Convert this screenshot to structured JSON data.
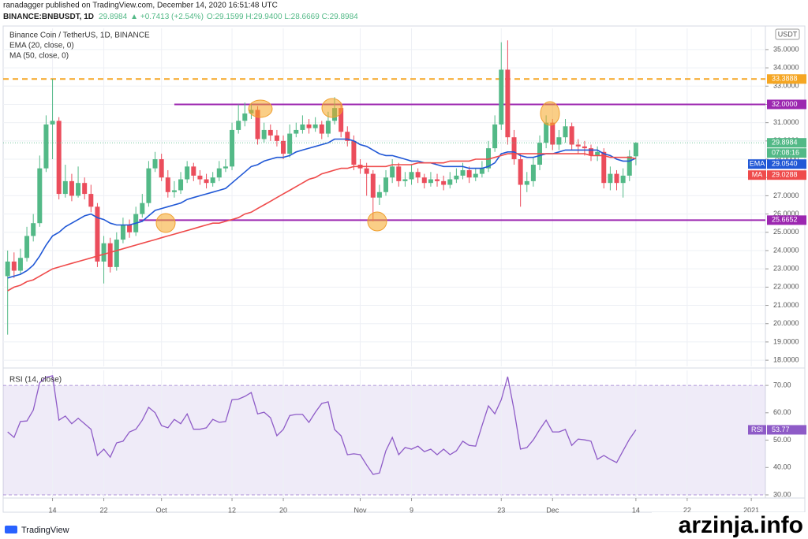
{
  "header": {
    "line1": "ranadagger published on TradingView.com, December 14, 2020 16:51:48 UTC",
    "symbol": "BINANCE:BNBUSDT, 1D",
    "price": "29.8984",
    "change": "▲ +0.7413 (+2.54%)",
    "ohlc": "O:29.1599 H:29.9400 L:28.6669 C:29.8984"
  },
  "footer": {
    "brand": "TradingView",
    "watermark": "arzinja.info"
  },
  "chart_data": [
    {
      "type": "candlestick",
      "title": "Binance Coin / TetherUS, 1D, BINANCE",
      "currency": "USDT",
      "countdown": "07:08:16",
      "up_color": "#53b987",
      "down_color": "#eb4d5c",
      "xlim": [
        -0.7,
        118.2
      ],
      "xticks": [
        {
          "value": 7,
          "label": "14"
        },
        {
          "value": 15,
          "label": "22"
        },
        {
          "value": 24,
          "label": "Oct"
        },
        {
          "value": 35,
          "label": "12"
        },
        {
          "value": 43,
          "label": "20"
        },
        {
          "value": 55,
          "label": "Nov"
        },
        {
          "value": 63,
          "label": "9"
        },
        {
          "value": 77,
          "label": "23"
        },
        {
          "value": 85,
          "label": "Dec"
        },
        {
          "value": 98,
          "label": "14"
        },
        {
          "value": 106,
          "label": "22"
        },
        {
          "value": 116,
          "label": "2021"
        }
      ],
      "ylim": [
        17.66,
        36.16
      ],
      "yticks": [
        {
          "value": 18,
          "label": "18.0000"
        },
        {
          "value": 19,
          "label": "19.0000"
        },
        {
          "value": 20,
          "label": "20.0000"
        },
        {
          "value": 21,
          "label": "21.0000"
        },
        {
          "value": 22,
          "label": "22.0000"
        },
        {
          "value": 23,
          "label": "23.0000"
        },
        {
          "value": 24,
          "label": "24.0000"
        },
        {
          "value": 25,
          "label": "25.0000"
        },
        {
          "value": 26,
          "label": "26.0000"
        },
        {
          "value": 27,
          "label": "27.0000"
        },
        {
          "value": 28,
          "label": "28.0000"
        },
        {
          "value": 29,
          "label": "29.0000"
        },
        {
          "value": 30,
          "label": "30.0000"
        },
        {
          "value": 31,
          "label": "31.0000"
        },
        {
          "value": 32,
          "label": "32.0000"
        },
        {
          "value": 33,
          "label": "33.0000"
        },
        {
          "value": 34,
          "label": "34.0000"
        },
        {
          "value": 35,
          "label": "35.0000"
        }
      ],
      "grid": true,
      "open": [
        22.6,
        23.4,
        22.9,
        23.6,
        24.8,
        25.5,
        28.5,
        30.9,
        31.1,
        27.1,
        27.8,
        27.0,
        27.7,
        27.1,
        26.4,
        23.4,
        24.4,
        23.1,
        24.6,
        25.4,
        25.0,
        26.0,
        26.6,
        28.5,
        29.0,
        28.0,
        27.2,
        27.3,
        27.9,
        28.6,
        28.1,
        27.9,
        27.7,
        28.0,
        28.5,
        28.6,
        30.6,
        31.1,
        31.5,
        31.7,
        30.1,
        30.6,
        30.3,
        30.0,
        29.3,
        30.4,
        30.6,
        30.9,
        30.7,
        30.9,
        30.4,
        31.1,
        31.8,
        30.5,
        30.0,
        28.7,
        28.5,
        28.2,
        26.9,
        27.2,
        28.0,
        28.6,
        27.8,
        27.9,
        28.3,
        28.0,
        27.7,
        27.9,
        27.8,
        27.6,
        27.9,
        28.1,
        28.4,
        28.0,
        28.2,
        28.5,
        29.6,
        30.9,
        33.9,
        30.2,
        29.0,
        27.6,
        27.8,
        28.7,
        29.9,
        31.0,
        29.8,
        30.2,
        30.8,
        29.8,
        29.7,
        29.6,
        29.2,
        29.4,
        27.7,
        28.2,
        27.7,
        28.1,
        29.1599
      ],
      "high": [
        24.0,
        23.9,
        24.1,
        25.3,
        26.0,
        29.2,
        31.4,
        33.4,
        31.3,
        28.7,
        28.2,
        28.6,
        28.0,
        27.6,
        26.6,
        24.8,
        24.7,
        25.0,
        25.8,
        25.7,
        26.4,
        27.1,
        28.9,
        29.4,
        29.3,
        28.4,
        27.8,
        28.3,
        28.9,
        28.8,
        28.4,
        28.2,
        28.3,
        28.9,
        29.0,
        31.0,
        32.0,
        32.1,
        32.0,
        31.9,
        31.0,
        30.9,
        30.6,
        30.3,
        30.9,
        31.0,
        31.4,
        31.2,
        31.3,
        31.1,
        31.6,
        32.4,
        32.1,
        30.8,
        30.3,
        29.0,
        28.8,
        28.4,
        27.6,
        28.4,
        29.0,
        28.8,
        28.3,
        28.7,
        28.5,
        28.2,
        28.3,
        28.2,
        28.1,
        28.3,
        28.5,
        28.8,
        28.6,
        28.5,
        28.9,
        30.0,
        31.4,
        35.4,
        35.5,
        30.6,
        29.3,
        28.3,
        29.1,
        30.3,
        31.4,
        31.2,
        30.6,
        31.2,
        31.0,
        30.1,
        30.0,
        29.8,
        29.7,
        29.6,
        28.6,
        28.4,
        28.5,
        29.5,
        29.94
      ],
      "low": [
        19.4,
        22.5,
        22.7,
        23.4,
        24.5,
        25.3,
        28.3,
        29.0,
        26.8,
        26.9,
        26.7,
        26.9,
        26.8,
        26.1,
        23.1,
        22.2,
        22.8,
        22.9,
        24.4,
        24.7,
        24.8,
        25.8,
        26.4,
        28.3,
        27.8,
        26.9,
        26.9,
        27.1,
        27.7,
        27.8,
        27.6,
        27.4,
        27.5,
        27.8,
        28.3,
        28.4,
        30.4,
        30.8,
        31.2,
        29.8,
        29.9,
        30.0,
        29.7,
        29.0,
        29.1,
        30.2,
        30.4,
        30.4,
        30.5,
        30.1,
        30.2,
        30.9,
        30.2,
        29.7,
        28.4,
        28.2,
        27.0,
        25.6,
        26.5,
        27.0,
        27.7,
        27.5,
        27.5,
        27.6,
        27.7,
        27.4,
        27.5,
        27.5,
        27.3,
        27.4,
        27.7,
        27.9,
        27.7,
        27.8,
        28.0,
        28.3,
        29.4,
        30.6,
        29.8,
        28.7,
        26.4,
        27.2,
        27.5,
        28.4,
        29.6,
        29.5,
        29.5,
        29.9,
        29.5,
        29.3,
        29.2,
        28.9,
        28.9,
        27.4,
        27.3,
        27.3,
        26.9,
        27.8,
        28.6669
      ],
      "close": [
        23.4,
        22.9,
        23.6,
        24.8,
        25.5,
        28.5,
        30.9,
        31.1,
        27.1,
        27.8,
        27.0,
        27.7,
        27.1,
        26.4,
        23.4,
        24.4,
        23.1,
        24.6,
        25.4,
        25.0,
        26.0,
        26.6,
        28.5,
        29.0,
        28.0,
        27.2,
        27.3,
        27.9,
        28.6,
        28.1,
        27.9,
        27.7,
        28.0,
        28.5,
        28.6,
        30.6,
        31.1,
        31.5,
        31.7,
        30.1,
        30.6,
        30.3,
        30.0,
        29.3,
        30.4,
        30.6,
        30.9,
        30.7,
        30.9,
        30.4,
        31.1,
        31.8,
        30.5,
        30.0,
        28.7,
        28.5,
        28.2,
        26.9,
        27.2,
        28.0,
        28.6,
        27.8,
        27.9,
        28.3,
        28.0,
        27.7,
        27.9,
        27.8,
        27.6,
        27.9,
        28.1,
        28.4,
        28.0,
        28.2,
        28.5,
        29.6,
        30.9,
        33.9,
        30.2,
        29.0,
        27.6,
        27.8,
        28.7,
        29.9,
        31.0,
        29.8,
        30.2,
        30.8,
        29.8,
        29.7,
        29.6,
        29.2,
        29.4,
        27.7,
        28.2,
        27.7,
        28.1,
        29.1599,
        29.8984
      ],
      "series": [
        {
          "name": "EMA (20, close, 0)",
          "tag": "EMA",
          "color": "#2158d6",
          "last_label": "29.0540",
          "values": [
            22.5,
            22.6,
            22.7,
            22.9,
            23.2,
            23.7,
            24.3,
            24.8,
            25.0,
            25.3,
            25.5,
            25.7,
            25.9,
            26.0,
            25.8,
            25.7,
            25.5,
            25.4,
            25.4,
            25.4,
            25.5,
            25.6,
            25.9,
            26.2,
            26.3,
            26.4,
            26.5,
            26.6,
            26.8,
            26.9,
            27.0,
            27.1,
            27.2,
            27.3,
            27.4,
            27.7,
            28.0,
            28.3,
            28.6,
            28.7,
            28.9,
            29.0,
            29.1,
            29.1,
            29.2,
            29.4,
            29.5,
            29.6,
            29.7,
            29.8,
            29.9,
            30.1,
            30.1,
            30.1,
            30.0,
            29.8,
            29.7,
            29.5,
            29.3,
            29.2,
            29.2,
            29.1,
            29.0,
            28.9,
            28.9,
            28.8,
            28.8,
            28.7,
            28.6,
            28.6,
            28.6,
            28.6,
            28.5,
            28.5,
            28.5,
            28.6,
            28.8,
            29.3,
            29.4,
            29.4,
            29.2,
            29.1,
            29.1,
            29.2,
            29.3,
            29.3,
            29.4,
            29.5,
            29.5,
            29.5,
            29.5,
            29.5,
            29.5,
            29.3,
            29.2,
            29.0,
            28.9,
            28.9,
            29.054
          ]
        },
        {
          "name": "MA (50, close, 0)",
          "tag": "MA",
          "color": "#ef4b4b",
          "values": [
            21.8,
            22.0,
            22.1,
            22.3,
            22.4,
            22.6,
            22.8,
            23.0,
            23.1,
            23.2,
            23.3,
            23.4,
            23.5,
            23.6,
            23.7,
            23.8,
            23.9,
            24.0,
            24.1,
            24.2,
            24.3,
            24.4,
            24.5,
            24.6,
            24.7,
            24.8,
            24.9,
            25.0,
            25.1,
            25.2,
            25.3,
            25.4,
            25.5,
            25.5,
            25.6,
            25.7,
            25.8,
            26.0,
            26.1,
            26.3,
            26.5,
            26.7,
            26.9,
            27.1,
            27.3,
            27.5,
            27.7,
            27.9,
            28.0,
            28.2,
            28.3,
            28.4,
            28.5,
            28.5,
            28.6,
            28.6,
            28.6,
            28.6,
            28.6,
            28.6,
            28.7,
            28.7,
            28.7,
            28.7,
            28.8,
            28.8,
            28.8,
            28.8,
            28.8,
            28.9,
            28.9,
            28.9,
            28.9,
            29.0,
            29.0,
            29.0,
            29.1,
            29.2,
            29.3,
            29.3,
            29.3,
            29.3,
            29.3,
            29.3,
            29.3,
            29.3,
            29.3,
            29.3,
            29.3,
            29.3,
            29.3,
            29.2,
            29.2,
            29.2,
            29.1,
            29.1,
            29.1,
            29.1,
            29.0288
          ]
        }
      ],
      "price_lines": [
        {
          "value": 33.3888,
          "color": "#f5a623",
          "style": "dashed",
          "start": -0.7
        },
        {
          "value": 32,
          "label": "32.0000",
          "color": "#9c27b0",
          "style": "solid",
          "start": 26
        },
        {
          "value": 25.6652,
          "color": "#9c27b0",
          "style": "solid",
          "start": 20.5
        }
      ]
    },
    {
      "type": "line",
      "ylim": [
        28.85,
        75.5
      ],
      "yticks": [
        {
          "value": 30,
          "label": "30.00"
        },
        {
          "value": 40,
          "label": "40.00"
        },
        {
          "value": 50,
          "label": "50.00"
        },
        {
          "value": 60,
          "label": "60.00"
        },
        {
          "value": 70,
          "label": "70.00"
        }
      ],
      "band": [
        30,
        70
      ],
      "band_color": "#7e57c2",
      "series": [
        {
          "name": "RSI (14, close)",
          "tag": "RSI",
          "color": "#8e5bc7",
          "values": [
            53,
            51,
            56.8,
            57,
            61,
            71,
            73,
            73.5,
            57.3,
            58.8,
            56,
            58,
            56,
            54,
            44.4,
            46.7,
            43.8,
            49,
            49.6,
            53,
            54,
            57.3,
            62,
            60,
            55.3,
            54.5,
            57.6,
            56,
            59.6,
            54,
            54,
            54.5,
            57.6,
            56.5,
            56.8,
            64.8,
            65,
            66,
            67.4,
            59.6,
            60.2,
            58.2,
            51.6,
            53.9,
            59,
            59.4,
            59.4,
            56.5,
            60.2,
            63.4,
            64,
            53.9,
            51.6,
            44.7,
            45,
            44.7,
            40.9,
            37.5,
            38,
            46.1,
            51,
            44.7,
            47.3,
            46.7,
            47.8,
            45.8,
            46.7,
            44.7,
            46.7,
            44.7,
            46.1,
            49.6,
            48.1,
            47.8,
            55.3,
            62.5,
            59.6,
            64.8,
            73.2,
            61,
            46.7,
            47.3,
            50.1,
            53.9,
            57.3,
            53,
            53,
            53.9,
            48.1,
            50.4,
            50.1,
            49.6,
            43,
            44.4,
            43,
            41.8,
            46.1,
            50.4,
            53.77
          ]
        }
      ]
    }
  ]
}
